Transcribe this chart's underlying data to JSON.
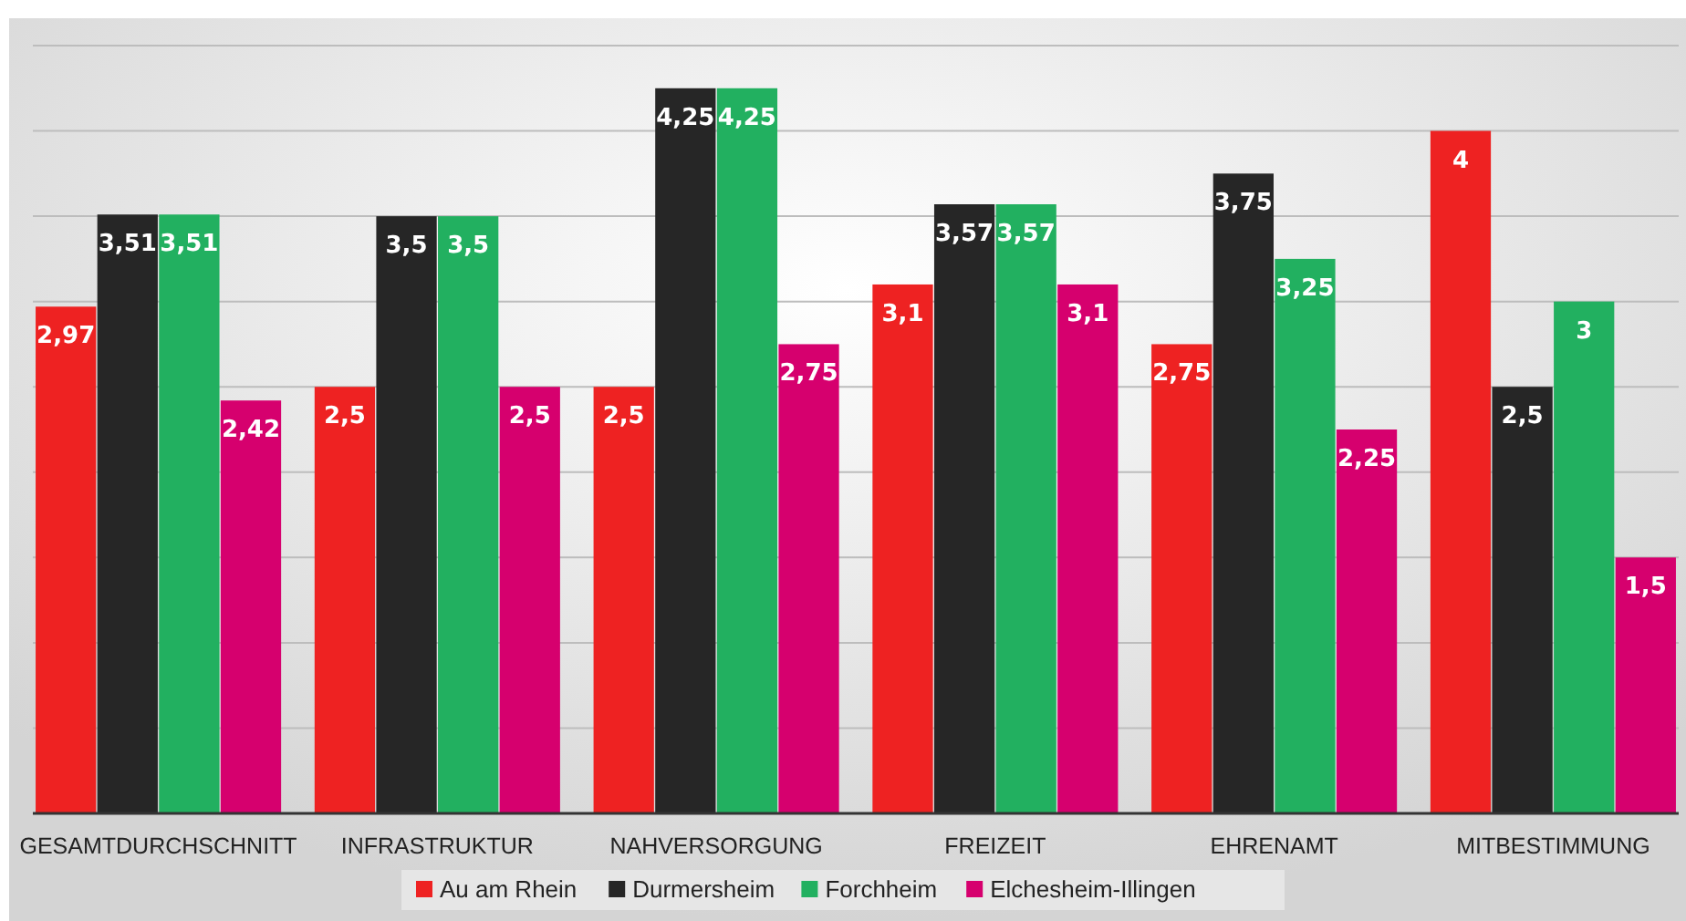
{
  "chart_data": {
    "type": "bar",
    "categories": [
      "GESAMTDURCHSCHNITT",
      "INFRASTRUKTUR",
      "NAHVERSORGUNG",
      "FREIZEIT",
      "EHRENAMT",
      "MITBESTIMMUNG"
    ],
    "series": [
      {
        "name": "Au am Rhein",
        "color": "#ee2222",
        "values": [
          2.97,
          2.5,
          2.5,
          3.1,
          2.75,
          4
        ],
        "value_labels": [
          "2,97",
          "2,5",
          "2,5",
          "3,1",
          "2,75",
          "4"
        ]
      },
      {
        "name": "Durmersheim",
        "color": "#262626",
        "values": [
          3.51,
          3.5,
          4.25,
          3.57,
          3.75,
          2.5
        ],
        "value_labels": [
          "3,51",
          "3,5",
          "4,25",
          "3,57",
          "3,75",
          "2,5"
        ]
      },
      {
        "name": "Forchheim",
        "color": "#22b060",
        "values": [
          3.51,
          3.5,
          4.25,
          3.57,
          3.25,
          3
        ],
        "value_labels": [
          "3,51",
          "3,5",
          "4,25",
          "3,57",
          "3,25",
          "3"
        ]
      },
      {
        "name": "Elchesheim-Illingen",
        "color": "#d6006e",
        "values": [
          2.42,
          2.5,
          2.75,
          3.1,
          2.25,
          1.5
        ],
        "value_labels": [
          "2,42",
          "2,5",
          "2,75",
          "3,1",
          "2,25",
          "1,5"
        ]
      }
    ],
    "ylim": [
      0,
      4.5
    ],
    "yticks": [
      {
        "value": 0,
        "label": null
      },
      {
        "value": 0.5,
        "label": null
      },
      {
        "value": 1,
        "label": null
      },
      {
        "value": 1.5,
        "label": null
      },
      {
        "value": 2,
        "label": null
      },
      {
        "value": 2.5,
        "label": null
      },
      {
        "value": 3,
        "label": null
      },
      {
        "value": 3.5,
        "label": null
      },
      {
        "value": 4,
        "label": null
      },
      {
        "value": 4.5,
        "label": null
      }
    ],
    "grid": "y",
    "legend": "bottom",
    "tick_labels": "x"
  }
}
